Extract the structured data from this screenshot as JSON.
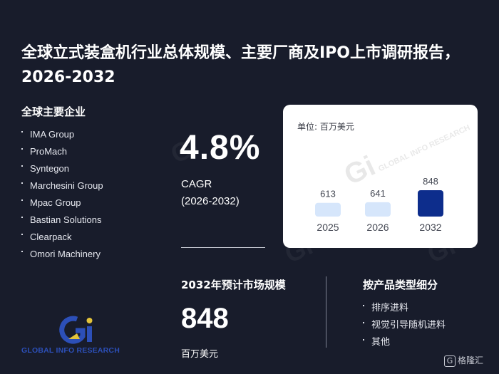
{
  "title": "全球立式装盒机行业总体规模、主要厂商及IPO上市调研报告，2026-2032",
  "companies": {
    "heading": "全球主要企业",
    "items": [
      "IMA Group",
      "ProMach",
      "Syntegon",
      "Marchesini Group",
      "Mpac Group",
      "Bastian Solutions",
      "Clearpack",
      "Omori Machinery"
    ]
  },
  "cagr": {
    "value": "4.8%",
    "label": "CAGR",
    "period": "(2026-2032)"
  },
  "chart_data": {
    "type": "bar",
    "unit_label": "单位: 百万美元",
    "categories": [
      "2025",
      "2026",
      "2032"
    ],
    "values": [
      613,
      641,
      848
    ],
    "colors": [
      "#d6e6fb",
      "#d6e6fb",
      "#0d2d8c"
    ],
    "legend": "none",
    "grid": false
  },
  "market_size": {
    "heading": "2032年预计市场规模",
    "value": "848",
    "unit": "百万美元"
  },
  "segments": {
    "heading": "按产品类型细分",
    "items": [
      "排序进料",
      "视觉引导随机进料",
      "其他"
    ]
  },
  "logo": {
    "mark": "Gi",
    "text": "GLOBAL INFO RESEARCH",
    "colors": {
      "primary": "#2c4fb8",
      "accent": "#e3c33a"
    }
  },
  "watermark": {
    "mark": "Gi",
    "text": "GLOBAL INFO RESEARCH"
  },
  "source_badge": {
    "icon": "g-logo-icon",
    "text": "格隆汇"
  }
}
